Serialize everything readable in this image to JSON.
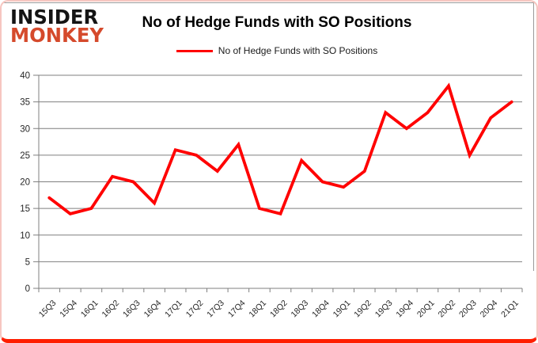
{
  "logo": {
    "line1": "INSIDER",
    "line2": "MONKEY"
  },
  "header": {
    "title": "No of Hedge Funds with SO Positions"
  },
  "legend": {
    "label": "No of Hedge Funds with SO Positions",
    "line_color": "#ff0000"
  },
  "chart_data": {
    "type": "line",
    "title": "No of Hedge Funds with SO Positions",
    "categories": [
      "15Q3",
      "15Q4",
      "16Q1",
      "16Q2",
      "16Q3",
      "16Q4",
      "17Q1",
      "17Q2",
      "17Q3",
      "17Q4",
      "18Q1",
      "18Q2",
      "18Q3",
      "18Q4",
      "19Q1",
      "19Q2",
      "19Q3",
      "19Q4",
      "20Q1",
      "20Q2",
      "20Q3",
      "20Q4",
      "21Q1"
    ],
    "series": [
      {
        "name": "No of Hedge Funds with SO Positions",
        "values": [
          17,
          14,
          15,
          21,
          20,
          16,
          26,
          25,
          22,
          27,
          15,
          14,
          24,
          20,
          19,
          22,
          33,
          30,
          33,
          38,
          25,
          32,
          35
        ]
      }
    ],
    "xlabel": "",
    "ylabel": "",
    "ylim": [
      0,
      40
    ],
    "yticks": [
      0,
      5,
      10,
      15,
      20,
      25,
      30,
      35,
      40
    ],
    "grid": "horizontal",
    "legend_position": "top-center",
    "line_color": "#ff0000",
    "grid_color": "#7f7f7f",
    "tick_label_color": "#262626"
  }
}
